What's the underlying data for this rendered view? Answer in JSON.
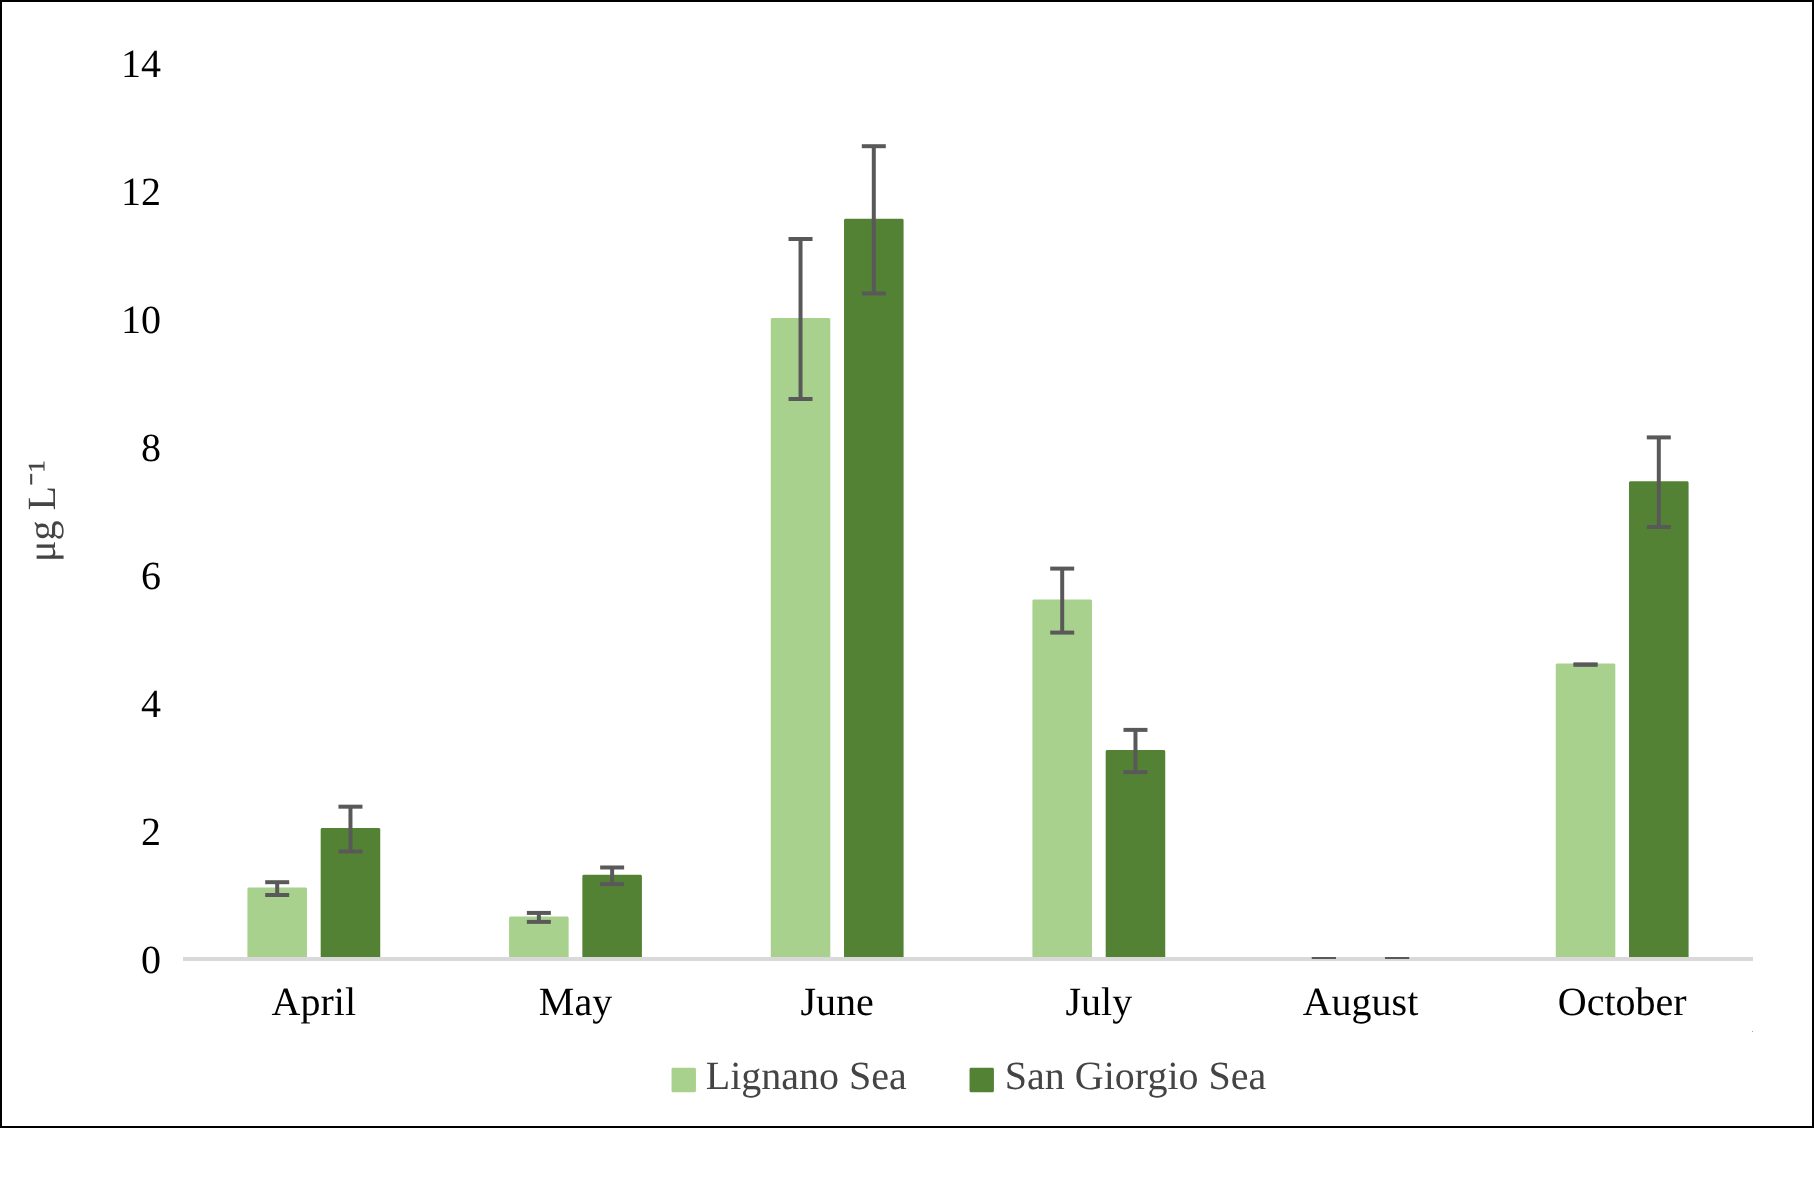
{
  "chart_data": {
    "type": "bar",
    "ylabel": "μg L⁻¹",
    "categories": [
      "April",
      "May",
      "June",
      "July",
      "August",
      "October"
    ],
    "series": [
      {
        "name": "Lignano Sea",
        "color": "#a9d18e",
        "values": [
          1.1,
          0.65,
          10.0,
          5.6,
          0,
          4.6
        ],
        "errors": [
          0.1,
          0.07,
          1.25,
          0.5,
          0,
          0
        ]
      },
      {
        "name": "San Giorgio Sea",
        "color": "#548235",
        "values": [
          2.03,
          1.3,
          11.55,
          3.25,
          0,
          7.45
        ],
        "errors": [
          0.35,
          0.13,
          1.15,
          0.33,
          0,
          0.7
        ]
      }
    ],
    "ylim": [
      0,
      14
    ],
    "yticks": [
      0,
      2,
      4,
      6,
      8,
      10,
      12,
      14
    ],
    "grid": false,
    "legend": "bottom"
  }
}
